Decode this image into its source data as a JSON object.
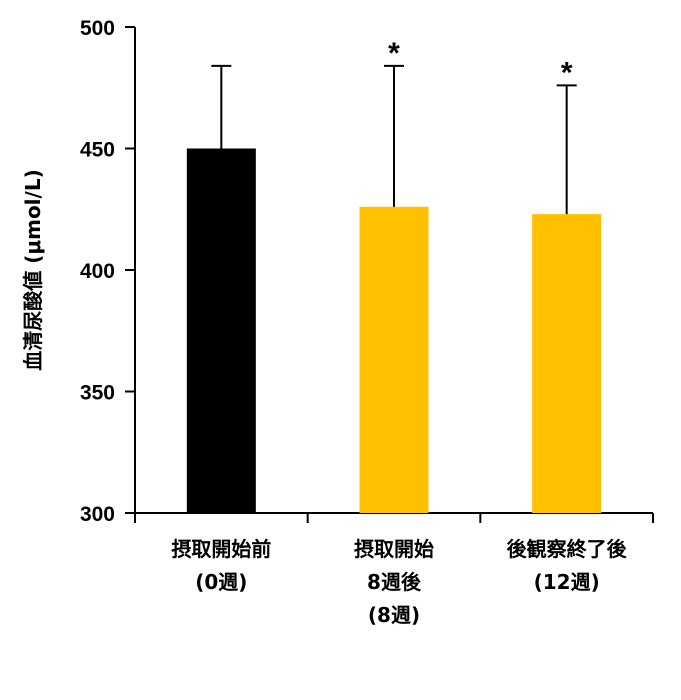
{
  "chart_data": {
    "type": "bar",
    "ylabel": "血清尿酸値 (μmol/L)",
    "ylim": [
      300,
      500
    ],
    "yticks": [
      300,
      350,
      400,
      450,
      500
    ],
    "grid": false,
    "categories": [
      [
        "摂取開始前",
        "(0週)"
      ],
      [
        "摂取開始",
        "8週後",
        "(8週)"
      ],
      [
        "後観察終了後",
        "(12週)"
      ]
    ],
    "values": [
      450,
      426,
      423
    ],
    "error_upper": [
      484,
      484,
      476
    ],
    "significance": [
      "",
      "*",
      "*"
    ],
    "colors": [
      "#000000",
      "#ffc000",
      "#ffc000"
    ]
  }
}
